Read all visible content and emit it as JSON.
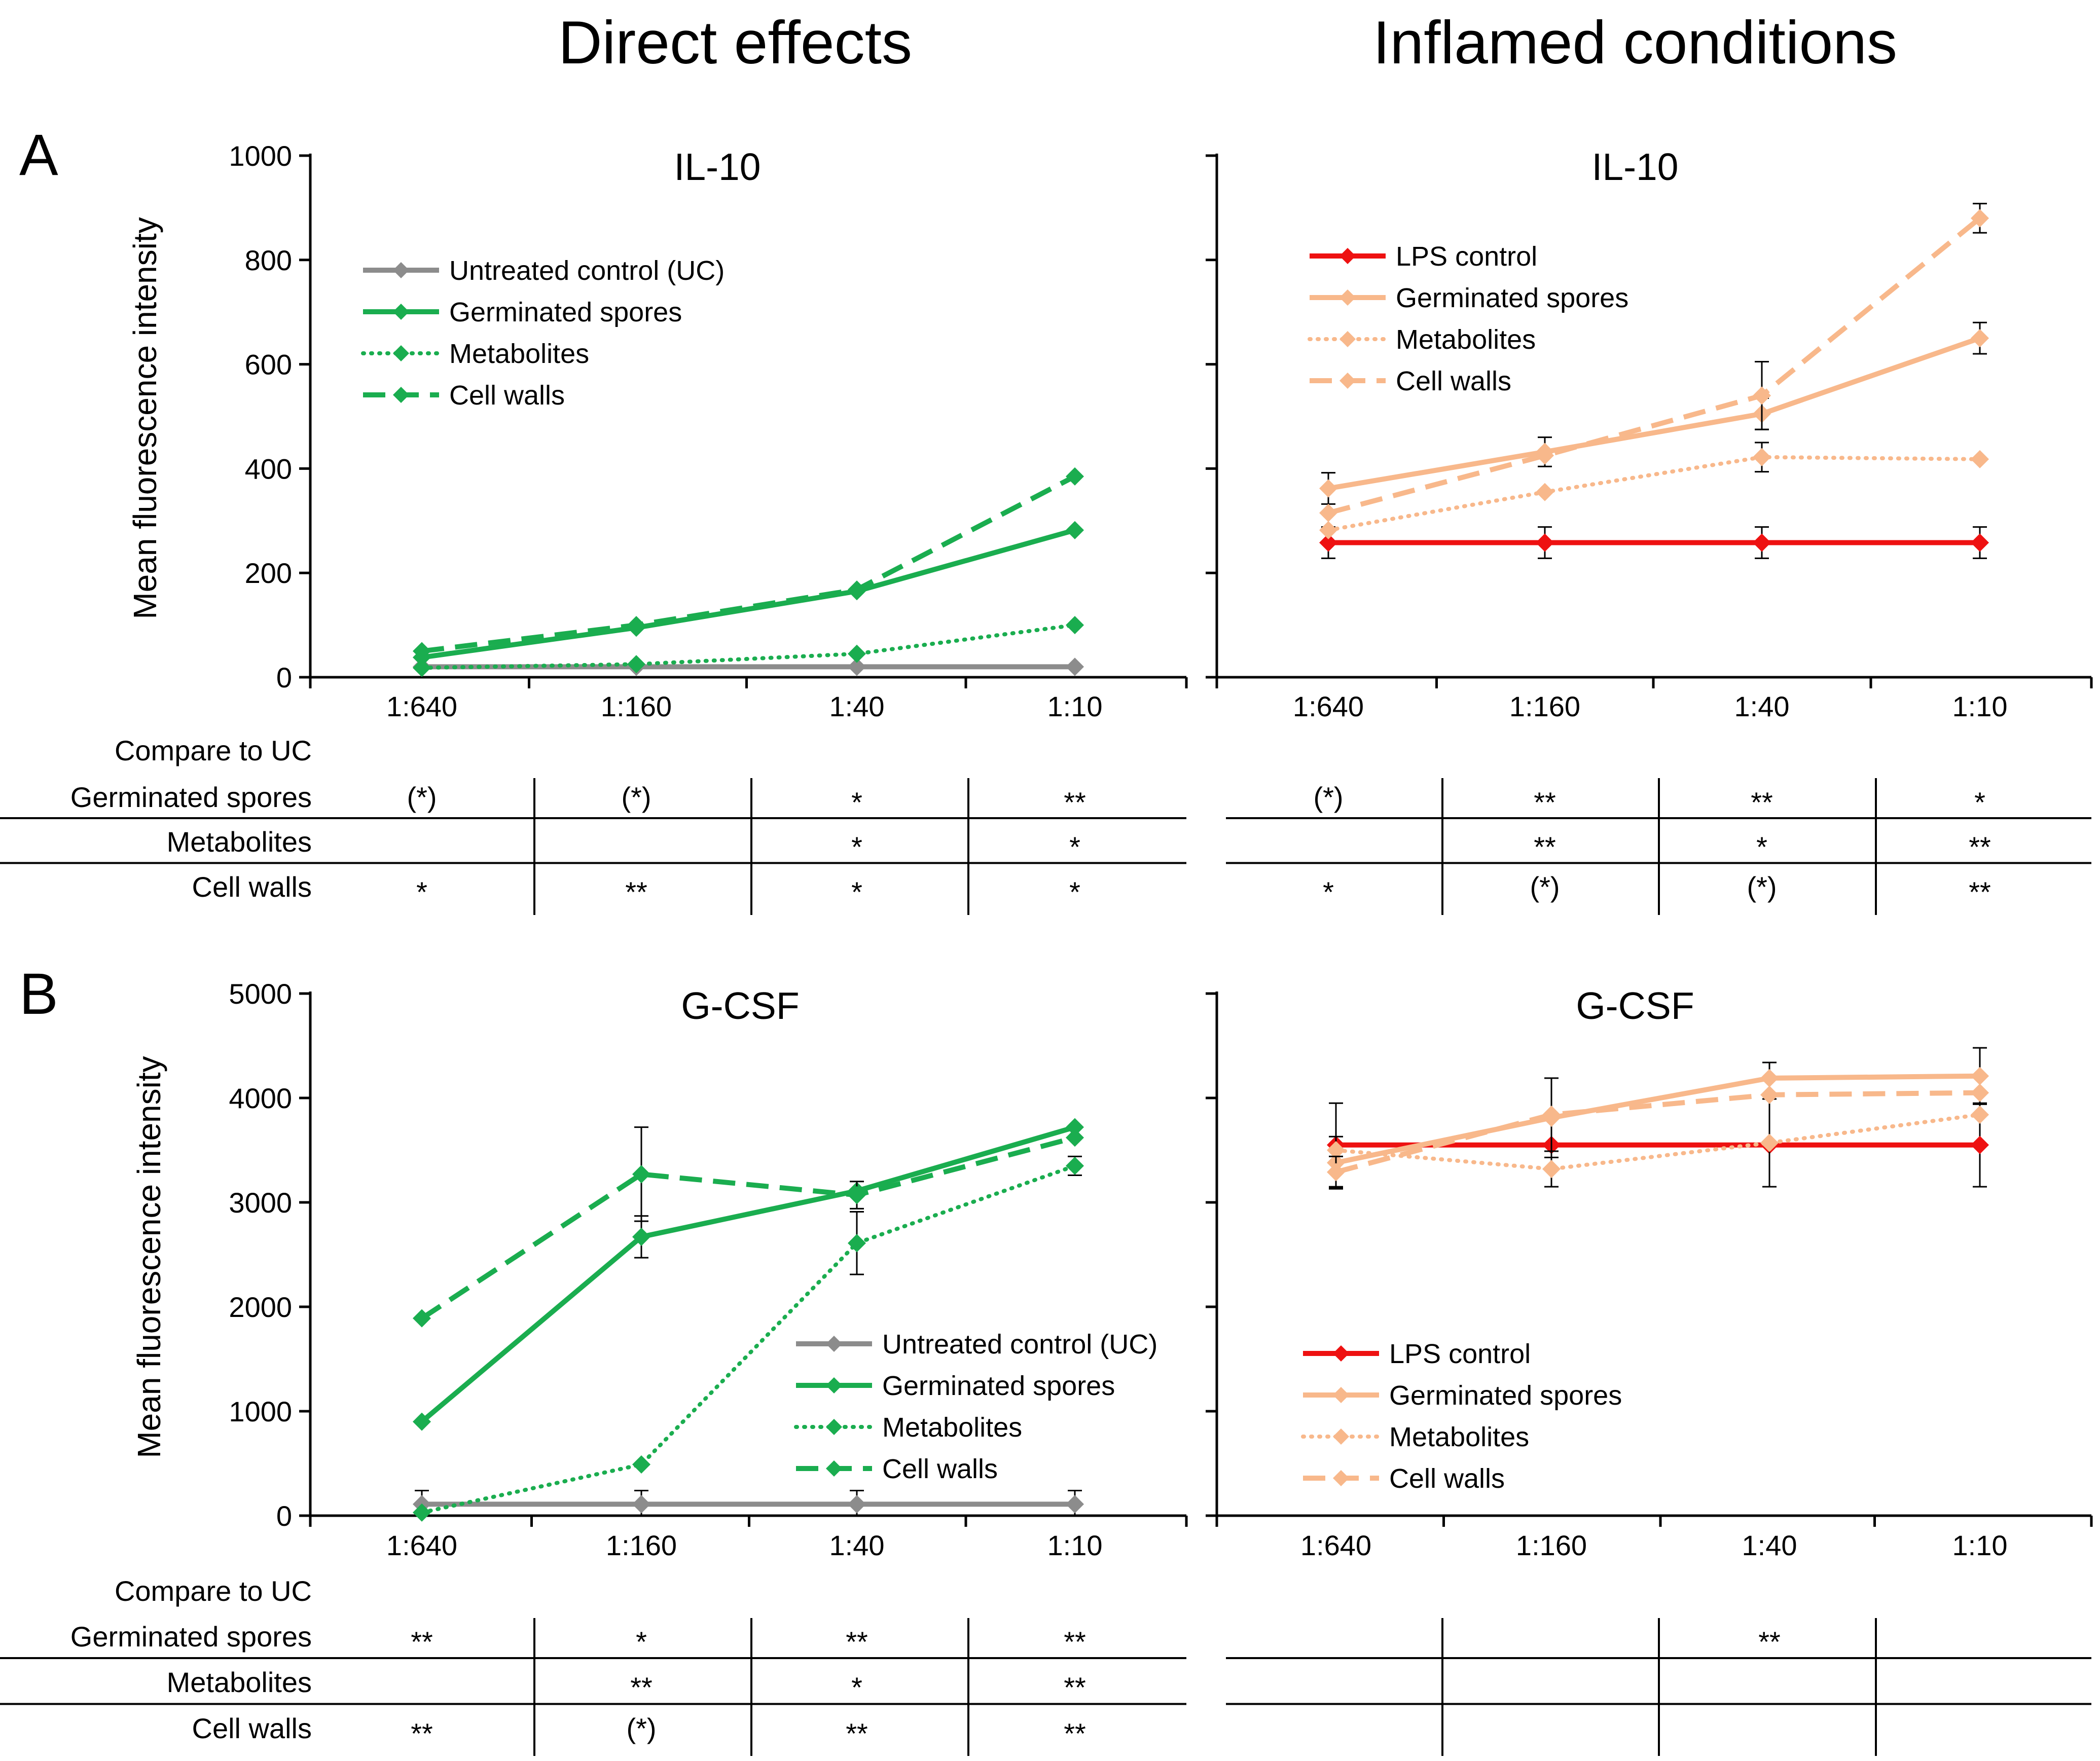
{
  "column_titles": [
    "Direct effects",
    "Inflamed conditions"
  ],
  "compare_label": "Compare to UC",
  "table_row_labels": [
    "Germinated spores",
    "Metabolites",
    "Cell walls"
  ],
  "colors": {
    "uc": "#8c8c8c",
    "green": "#1aad4f",
    "lps": "#ee1111",
    "orange": "#f8b88b"
  },
  "chart_data": [
    {
      "panel": "A",
      "type": "line",
      "title": "IL-10",
      "ylabel": "Mean fluorescence intensity",
      "categories": [
        "1:640",
        "1:160",
        "1:40",
        "1:10"
      ],
      "ylim": [
        0,
        1000
      ],
      "yticks": [
        0,
        200,
        400,
        600,
        800,
        1000
      ],
      "show_ytick_labels": true,
      "legend_position": "top-left",
      "series": [
        {
          "name": "Untreated control (UC)",
          "color": "uc",
          "style": "solid",
          "values": [
            20,
            20,
            20,
            20
          ]
        },
        {
          "name": "Germinated spores",
          "color": "green",
          "style": "solid",
          "values": [
            38,
            95,
            165,
            282
          ]
        },
        {
          "name": "Metabolites",
          "color": "green",
          "style": "dotted",
          "values": [
            18,
            25,
            45,
            100
          ]
        },
        {
          "name": "Cell walls",
          "color": "green",
          "style": "dashed",
          "values": [
            50,
            100,
            168,
            385
          ]
        }
      ],
      "significance": [
        [
          "(*)",
          "(*)",
          "*",
          "**"
        ],
        [
          "",
          "",
          "*",
          "*"
        ],
        [
          "*",
          "**",
          "*",
          "*"
        ]
      ]
    },
    {
      "panel": "",
      "type": "line",
      "title": "IL-10",
      "ylabel": "",
      "categories": [
        "1:640",
        "1:160",
        "1:40",
        "1:10"
      ],
      "ylim": [
        0,
        1000
      ],
      "yticks": [
        0,
        200,
        400,
        600,
        800,
        1000
      ],
      "show_ytick_labels": false,
      "legend_position": "top-left",
      "series": [
        {
          "name": "LPS control",
          "color": "lps",
          "style": "solid",
          "values": [
            258,
            258,
            258,
            258
          ],
          "errors": [
            30,
            30,
            30,
            30
          ]
        },
        {
          "name": "Germinated spores",
          "color": "orange",
          "style": "solid",
          "values": [
            362,
            432,
            505,
            650
          ],
          "errors": [
            30,
            28,
            30,
            30
          ]
        },
        {
          "name": "Metabolites",
          "color": "orange",
          "style": "dotted",
          "values": [
            282,
            355,
            422,
            418
          ],
          "errors": [
            0,
            0,
            28,
            0
          ]
        },
        {
          "name": "Cell walls",
          "color": "orange",
          "style": "dashed",
          "values": [
            315,
            425,
            540,
            880
          ],
          "errors": [
            0,
            0,
            65,
            28
          ]
        }
      ],
      "significance": [
        [
          "(*)",
          "**",
          "**",
          "*"
        ],
        [
          "",
          "**",
          "*",
          "**"
        ],
        [
          "*",
          "(*)",
          "(*)",
          "**"
        ]
      ]
    },
    {
      "panel": "B",
      "type": "line",
      "title": "G-CSF",
      "ylabel": "Mean fluorescence intensity",
      "categories": [
        "1:640",
        "1:160",
        "1:40",
        "1:10"
      ],
      "ylim": [
        0,
        5000
      ],
      "yticks": [
        0,
        1000,
        2000,
        3000,
        4000,
        5000
      ],
      "show_ytick_labels": true,
      "legend_position": "bottom-right",
      "series": [
        {
          "name": "Untreated control (UC)",
          "color": "uc",
          "style": "solid",
          "values": [
            110,
            110,
            110,
            110
          ],
          "errors": [
            130,
            130,
            130,
            130
          ]
        },
        {
          "name": "Germinated spores",
          "color": "green",
          "style": "solid",
          "values": [
            900,
            2670,
            3110,
            3720
          ],
          "errors": [
            0,
            200,
            0,
            0
          ]
        },
        {
          "name": "Metabolites",
          "color": "green",
          "style": "dotted",
          "values": [
            30,
            490,
            2610,
            3350
          ],
          "errors": [
            0,
            0,
            300,
            90
          ]
        },
        {
          "name": "Cell walls",
          "color": "green",
          "style": "dashed",
          "values": [
            1890,
            3270,
            3070,
            3620
          ],
          "errors": [
            0,
            450,
            130,
            0
          ]
        }
      ],
      "significance": [
        [
          "**",
          "*",
          "**",
          "**"
        ],
        [
          "",
          "**",
          "*",
          "**"
        ],
        [
          "**",
          "(*)",
          "**",
          "**"
        ]
      ]
    },
    {
      "panel": "",
      "type": "line",
      "title": "G-CSF",
      "ylabel": "",
      "categories": [
        "1:640",
        "1:160",
        "1:40",
        "1:10"
      ],
      "ylim": [
        0,
        5000
      ],
      "yticks": [
        0,
        1000,
        2000,
        3000,
        4000,
        5000
      ],
      "show_ytick_labels": false,
      "legend_position": "bottom-left",
      "series": [
        {
          "name": "LPS control",
          "color": "lps",
          "style": "solid",
          "values": [
            3550,
            3550,
            3550,
            3550
          ],
          "errors": [
            400,
            0,
            0,
            400
          ]
        },
        {
          "name": "Germinated spores",
          "color": "orange",
          "style": "solid",
          "values": [
            3380,
            3810,
            4190,
            4210
          ],
          "errors": [
            250,
            380,
            150,
            270
          ]
        },
        {
          "name": "Metabolites",
          "color": "orange",
          "style": "dotted",
          "values": [
            3500,
            3320,
            3570,
            3840
          ],
          "errors": [
            0,
            170,
            420,
            0
          ]
        },
        {
          "name": "Cell walls",
          "color": "orange",
          "style": "dashed",
          "values": [
            3290,
            3840,
            4030,
            4050
          ],
          "errors": [
            150,
            0,
            0,
            0
          ]
        }
      ],
      "significance": [
        [
          "",
          "",
          "**",
          ""
        ],
        [
          "",
          "",
          "",
          ""
        ],
        [
          "",
          "",
          "",
          ""
        ]
      ]
    }
  ]
}
